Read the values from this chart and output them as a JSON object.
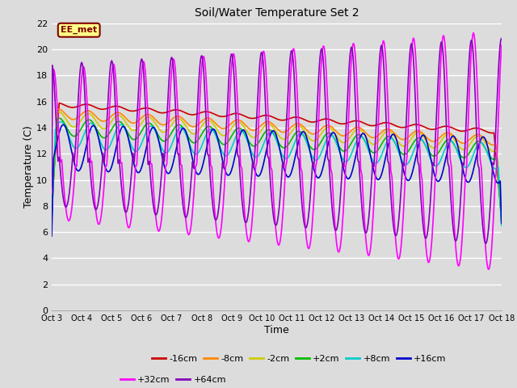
{
  "title": "Soil/Water Temperature Set 2",
  "xlabel": "Time",
  "ylabel": "Temperature (C)",
  "ylim": [
    0,
    22
  ],
  "xlim": [
    0,
    15
  ],
  "background_color": "#dcdcdc",
  "plot_bg_color": "#dcdcdc",
  "grid_color": "#ffffff",
  "annotation_text": "EE_met",
  "annotation_box_color": "#ffff88",
  "annotation_border_color": "#800000",
  "x_tick_labels": [
    "Oct 3",
    "Oct 4",
    "Oct 5",
    "Oct 6",
    "Oct 7",
    "Oct 8",
    "Oct 9",
    "Oct 10",
    "Oct 11",
    "Oct 12",
    "Oct 13",
    "Oct 14",
    "Oct 15",
    "Oct 16",
    "Oct 17",
    "Oct 18"
  ],
  "series": [
    {
      "label": "-16cm",
      "color": "#cc0000"
    },
    {
      "label": "-8cm",
      "color": "#ff8800"
    },
    {
      "label": "-2cm",
      "color": "#cccc00"
    },
    {
      "label": "+2cm",
      "color": "#00bb00"
    },
    {
      "label": "+8cm",
      "color": "#00cccc"
    },
    {
      "label": "+16cm",
      "color": "#0000cc"
    },
    {
      "label": "+32cm",
      "color": "#ff00ff"
    },
    {
      "label": "+64cm",
      "color": "#8800bb"
    }
  ]
}
